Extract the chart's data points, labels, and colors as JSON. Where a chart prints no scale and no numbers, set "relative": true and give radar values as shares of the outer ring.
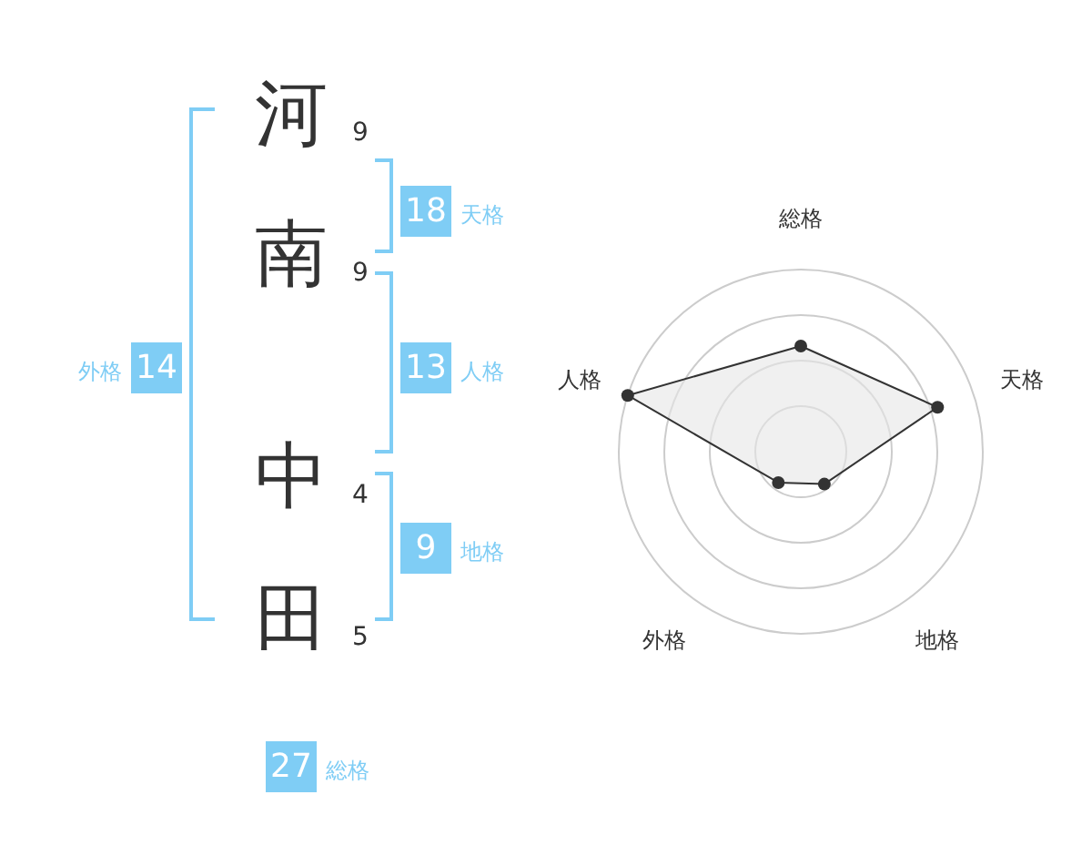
{
  "chart_data": [
    {
      "type": "other",
      "categories": [
        "河",
        "南",
        "中",
        "田"
      ],
      "color": "#7fcdf5",
      "annotations": [
        "9",
        "9",
        "4",
        "5",
        "18",
        "天格",
        "13",
        "人格",
        "9",
        "地格",
        "14",
        "外格",
        "27",
        "総格"
      ]
    },
    {
      "type": "radar",
      "categories": [
        "総格",
        "天格",
        "地格",
        "外格",
        "人格"
      ],
      "relative": true,
      "marker": "circle",
      "series": [
        {
          "color": "#333333",
          "values": [
            0.58,
            0.79,
            0.22,
            0.21,
            1.0
          ]
        }
      ]
    }
  ]
}
